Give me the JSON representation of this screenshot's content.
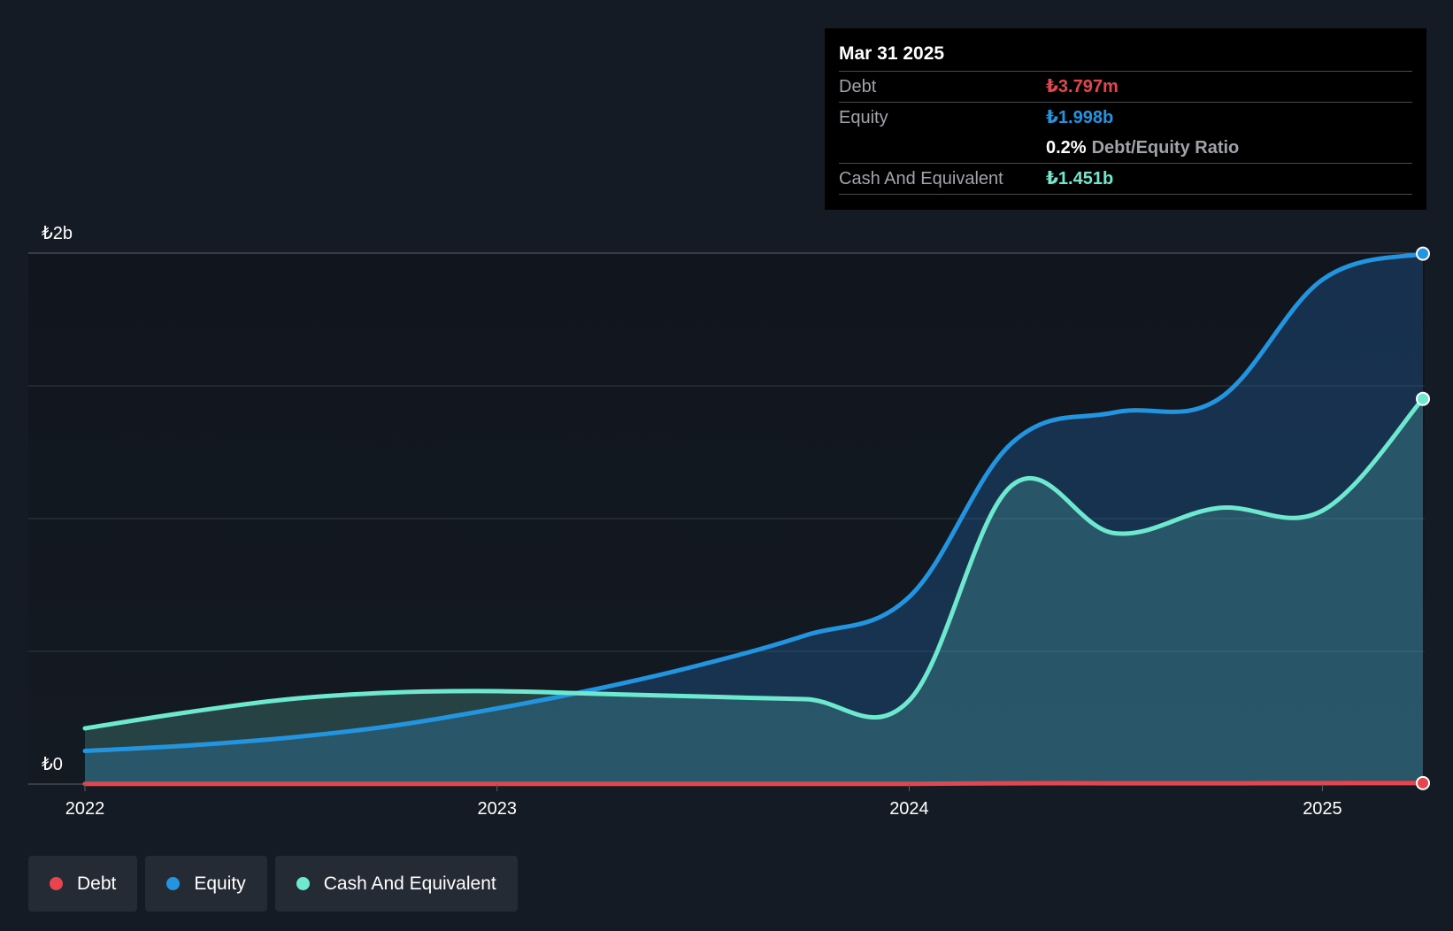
{
  "tooltip": {
    "date": "Mar 31 2025",
    "debt_label": "Debt",
    "debt_value": "₺3.797m",
    "equity_label": "Equity",
    "equity_value": "₺1.998b",
    "ratio_value": "0.2%",
    "ratio_label": "Debt/Equity Ratio",
    "cash_label": "Cash And Equivalent",
    "cash_value": "₺1.451b"
  },
  "legend": [
    {
      "label": "Debt",
      "color": "#e8444d"
    },
    {
      "label": "Equity",
      "color": "#2394df"
    },
    {
      "label": "Cash And Equivalent",
      "color": "#6ee8cf"
    }
  ],
  "colors": {
    "debt": "#e8444d",
    "equity": "#2394df",
    "cash": "#6ee8cf",
    "background": "#151b24"
  },
  "chart_data": {
    "type": "area",
    "title": "",
    "xlabel": "",
    "ylabel": "",
    "x_ticks": [
      "2022",
      "2023",
      "2024",
      "2025"
    ],
    "y_ticks": [
      "₺0",
      "₺2b"
    ],
    "ylim": [
      0,
      2000000000
    ],
    "grid": true,
    "legend_position": "bottom-left",
    "series": [
      {
        "name": "Debt",
        "color": "#e8444d",
        "x": [
          "2022-01-01",
          "2022-04-01",
          "2022-07-01",
          "2022-10-01",
          "2023-01-01",
          "2023-04-01",
          "2023-07-01",
          "2023-10-01",
          "2024-01-01",
          "2024-04-01",
          "2024-07-01",
          "2024-10-01",
          "2025-01-01",
          "2025-03-31"
        ],
        "values": [
          1000000,
          1000000,
          1000000,
          1000000,
          1000000,
          1000000,
          1000000,
          1000000,
          1000000,
          3000000,
          3000000,
          3000000,
          3500000,
          3797000
        ]
      },
      {
        "name": "Equity",
        "color": "#2394df",
        "x": [
          "2022-01-01",
          "2022-04-01",
          "2022-07-01",
          "2022-10-01",
          "2023-01-01",
          "2023-04-01",
          "2023-07-01",
          "2023-10-01",
          "2024-01-01",
          "2024-04-01",
          "2024-07-01",
          "2024-10-01",
          "2025-01-01",
          "2025-03-31"
        ],
        "values": [
          125000000,
          145000000,
          175000000,
          220000000,
          285000000,
          360000000,
          450000000,
          560000000,
          705000000,
          1285000000,
          1400000000,
          1450000000,
          1900000000,
          1998000000
        ]
      },
      {
        "name": "Cash And Equivalent",
        "color": "#6ee8cf",
        "x": [
          "2022-01-01",
          "2022-04-01",
          "2022-07-01",
          "2022-10-01",
          "2023-01-01",
          "2023-04-01",
          "2023-07-01",
          "2023-10-01",
          "2024-01-01",
          "2024-04-01",
          "2024-07-01",
          "2024-10-01",
          "2025-01-01",
          "2025-03-31"
        ],
        "values": [
          210000000,
          270000000,
          320000000,
          345000000,
          350000000,
          340000000,
          330000000,
          320000000,
          315000000,
          1125000000,
          945000000,
          1040000000,
          1030000000,
          1451000000
        ]
      }
    ]
  }
}
